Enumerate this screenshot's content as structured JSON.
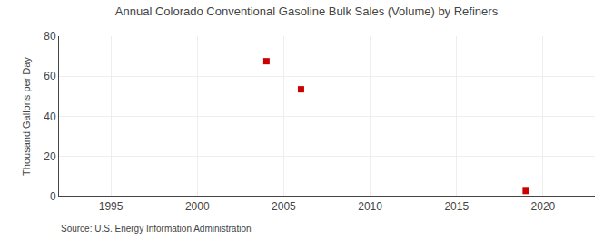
{
  "chart_data": {
    "type": "scatter",
    "title": "Annual Colorado Conventional Gasoline Bulk Sales (Volume) by Refiners",
    "ylabel": "Thousand Gallons per Day",
    "annotations": [
      "Source: U.S. Energy Information Administration"
    ],
    "x": [
      2004,
      2006,
      2019
    ],
    "values": [
      67.5,
      53.5,
      2.8
    ],
    "color": "#cc0000",
    "marker": "square",
    "xlim": [
      1992,
      2023
    ],
    "ylim": [
      0,
      80
    ],
    "xticks": [
      1995,
      2000,
      2005,
      2010,
      2015,
      2020
    ],
    "yticks": [
      0,
      20,
      40,
      60,
      80
    ],
    "grid": true
  }
}
